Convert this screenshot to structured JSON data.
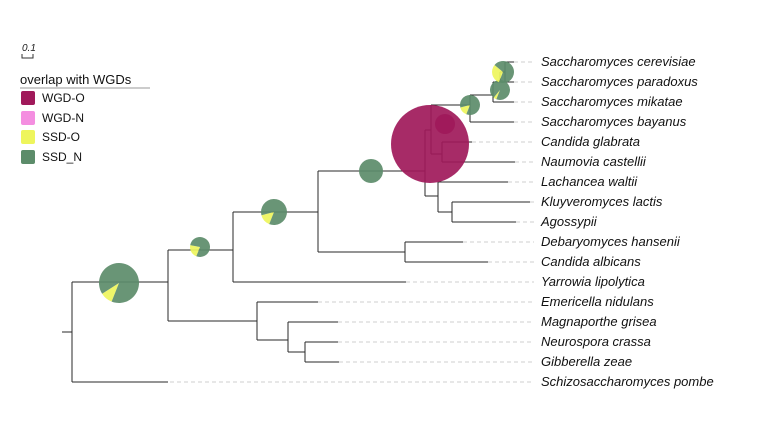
{
  "scale_bar": {
    "label": "0.1"
  },
  "legend": {
    "title": "overlap with WGDs",
    "items": [
      {
        "label": "WGD-O",
        "color": "#a0195a"
      },
      {
        "label": "WGD-N",
        "color": "#f48ee0"
      },
      {
        "label": "SSD-O",
        "color": "#eef55c"
      },
      {
        "label": "SSD_N",
        "color": "#5c8c6a"
      }
    ]
  },
  "taxa": [
    "Saccharomyces cerevisiae",
    "Saccharomyces paradoxus",
    "Saccharomyces mikatae",
    "Saccharomyces bayanus",
    "Candida glabrata",
    "Naumovia castellii",
    "Lachancea waltii",
    "Kluyveromyces lactis",
    "Agossypii",
    "Debaryomyces hansenii",
    "Candida albicans",
    "Yarrowia lipolytica",
    "Emericella nidulans",
    "Magnaporthe grisea",
    "Neurospora crassa",
    "Gibberella zeae",
    "Schizosaccharomyces pombe"
  ],
  "pie_nodes": [
    {
      "id": "root-ascomycota",
      "composition": {
        "WGD-O": 0,
        "WGD-N": 0,
        "SSD-O": 0.1,
        "SSD_N": 0.9
      }
    },
    {
      "id": "node-yarrowia-split",
      "composition": {
        "WGD-O": 0,
        "WGD-N": 0,
        "SSD-O": 0.22,
        "SSD_N": 0.78
      }
    },
    {
      "id": "node-ctg-split",
      "composition": {
        "WGD-O": 0,
        "WGD-N": 0,
        "SSD-O": 0.15,
        "SSD_N": 0.85
      }
    },
    {
      "id": "node-saccharomycetaceae",
      "composition": {
        "WGD-O": 0,
        "WGD-N": 0,
        "SSD-O": 0,
        "SSD_N": 1
      }
    },
    {
      "id": "node-wgd",
      "composition": {
        "WGD-O": 1,
        "WGD-N": 0,
        "SSD-O": 0,
        "SSD_N": 0
      }
    },
    {
      "id": "node-post-wgd",
      "composition": {
        "WGD-O": 1,
        "WGD-N": 0,
        "SSD-O": 0,
        "SSD_N": 0
      }
    },
    {
      "id": "node-saccharomyces",
      "composition": {
        "WGD-O": 0,
        "WGD-N": 0,
        "SSD-O": 0.15,
        "SSD_N": 0.85
      }
    },
    {
      "id": "node-sensu-stricto",
      "composition": {
        "WGD-O": 0,
        "WGD-N": 0,
        "SSD-O": 0.05,
        "SSD_N": 0.95
      }
    },
    {
      "id": "node-cer-par",
      "composition": {
        "WGD-O": 0,
        "WGD-N": 0,
        "SSD-O": 0.3,
        "SSD_N": 0.7
      }
    }
  ]
}
